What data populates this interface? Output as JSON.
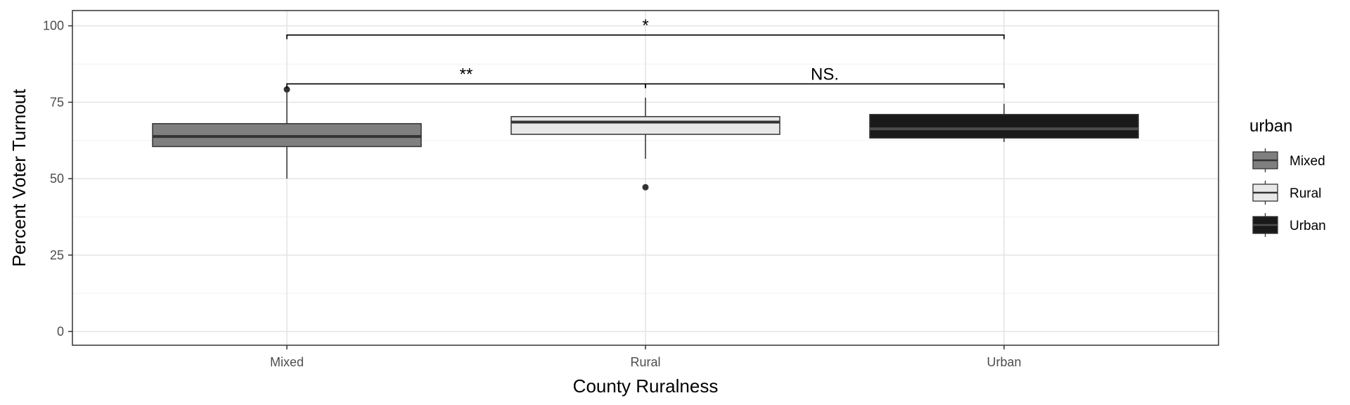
{
  "chart_data": {
    "type": "boxplot",
    "xlabel": "County Ruralness",
    "ylabel": "Percent Voter Turnout",
    "ylim": [
      -4.5,
      105
    ],
    "yticks": [
      0,
      25,
      50,
      75,
      100
    ],
    "categories": [
      "Mixed",
      "Rural",
      "Urban"
    ],
    "boxes": [
      {
        "category": "Mixed",
        "whisker_low": 50.0,
        "q1": 60.5,
        "median": 63.8,
        "q3": 68.0,
        "whisker_high": 79.2,
        "outliers": [
          79.2
        ],
        "fill": "#7f7f7f",
        "median_color": "#333333"
      },
      {
        "category": "Rural",
        "whisker_low": 56.5,
        "q1": 64.5,
        "median": 68.5,
        "q3": 70.3,
        "whisker_high": 76.5,
        "outliers": [
          47.2
        ],
        "fill": "#e8e8e8",
        "median_color": "#333333"
      },
      {
        "category": "Urban",
        "whisker_low": 62.0,
        "q1": 63.3,
        "median": 66.3,
        "q3": 71.0,
        "whisker_high": 74.5,
        "outliers": [],
        "fill": "#1a1a1a",
        "median_color": "#4d4d4d"
      }
    ],
    "comparisons": [
      {
        "from": "Mixed",
        "to": "Urban",
        "y": 97,
        "label": "*",
        "label_pos": "Rural"
      },
      {
        "from": "Mixed",
        "to": "Rural",
        "y": 81,
        "label": "**",
        "label_pos": "Mixed-Rural"
      },
      {
        "from": "Rural",
        "to": "Urban",
        "y": 81,
        "label": "NS.",
        "label_pos": "Rural-Urban"
      }
    ],
    "legend": {
      "title": "urban",
      "placement": "right",
      "entries": [
        {
          "label": "Mixed",
          "fill": "#7f7f7f"
        },
        {
          "label": "Rural",
          "fill": "#e8e8e8"
        },
        {
          "label": "Urban",
          "fill": "#1a1a1a"
        }
      ]
    },
    "grid": true
  }
}
